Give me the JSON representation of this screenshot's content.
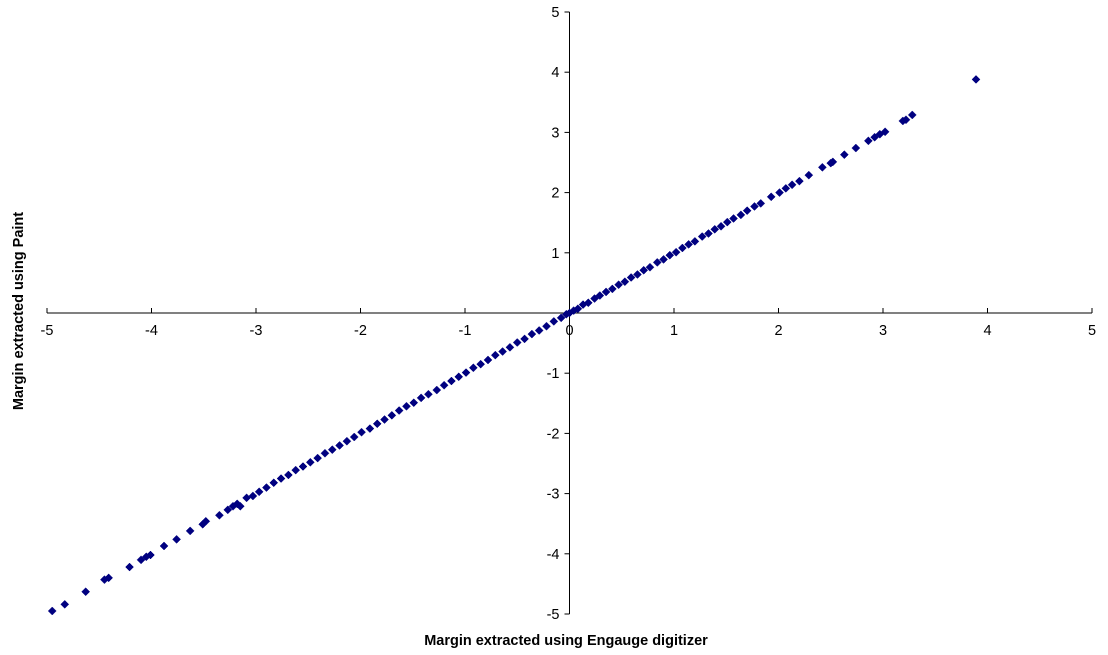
{
  "chart_data": {
    "type": "scatter",
    "title": "",
    "xlabel": "Margin extracted using Engauge digitizer",
    "ylabel": "Margin extracted using Paint",
    "xlim": [
      -5,
      5
    ],
    "ylim": [
      -5,
      5
    ],
    "x_ticks": [
      "-5",
      "-4",
      "-3",
      "-2",
      "-1",
      "0",
      "1",
      "2",
      "3",
      "4",
      "5"
    ],
    "y_ticks": [
      "-5",
      "-4",
      "-3",
      "-2",
      "-1",
      "1",
      "2",
      "3",
      "4",
      "5"
    ],
    "grid": false,
    "legend": "none",
    "marker": "diamond",
    "marker_color": "#000080",
    "points": [
      [
        -4.95,
        -4.95
      ],
      [
        -4.83,
        -4.84
      ],
      [
        -4.63,
        -4.63
      ],
      [
        -4.45,
        -4.43
      ],
      [
        -4.41,
        -4.4
      ],
      [
        -4.21,
        -4.22
      ],
      [
        -4.1,
        -4.1
      ],
      [
        -4.05,
        -4.05
      ],
      [
        -4.01,
        -4.02
      ],
      [
        -3.88,
        -3.87
      ],
      [
        -3.76,
        -3.76
      ],
      [
        -3.63,
        -3.62
      ],
      [
        -3.51,
        -3.51
      ],
      [
        -3.48,
        -3.46
      ],
      [
        -3.35,
        -3.36
      ],
      [
        -3.27,
        -3.27
      ],
      [
        -3.22,
        -3.21
      ],
      [
        -3.18,
        -3.17
      ],
      [
        -3.15,
        -3.21
      ],
      [
        -3.09,
        -3.07
      ],
      [
        -3.03,
        -3.04
      ],
      [
        -2.97,
        -2.97
      ],
      [
        -2.9,
        -2.9
      ],
      [
        -2.83,
        -2.82
      ],
      [
        -2.76,
        -2.75
      ],
      [
        -2.69,
        -2.69
      ],
      [
        -2.62,
        -2.61
      ],
      [
        -2.55,
        -2.55
      ],
      [
        -2.48,
        -2.48
      ],
      [
        -2.41,
        -2.41
      ],
      [
        -2.34,
        -2.33
      ],
      [
        -2.27,
        -2.27
      ],
      [
        -2.2,
        -2.2
      ],
      [
        -2.13,
        -2.13
      ],
      [
        -2.06,
        -2.06
      ],
      [
        -1.99,
        -1.98
      ],
      [
        -1.91,
        -1.92
      ],
      [
        -1.84,
        -1.84
      ],
      [
        -1.77,
        -1.77
      ],
      [
        -1.7,
        -1.7
      ],
      [
        -1.63,
        -1.62
      ],
      [
        -1.56,
        -1.55
      ],
      [
        -1.49,
        -1.49
      ],
      [
        -1.42,
        -1.41
      ],
      [
        -1.35,
        -1.35
      ],
      [
        -1.27,
        -1.28
      ],
      [
        -1.2,
        -1.2
      ],
      [
        -1.13,
        -1.13
      ],
      [
        -1.06,
        -1.06
      ],
      [
        -0.99,
        -0.99
      ],
      [
        -0.92,
        -0.91
      ],
      [
        -0.85,
        -0.85
      ],
      [
        -0.78,
        -0.78
      ],
      [
        -0.71,
        -0.7
      ],
      [
        -0.64,
        -0.64
      ],
      [
        -0.57,
        -0.57
      ],
      [
        -0.5,
        -0.49
      ],
      [
        -0.43,
        -0.43
      ],
      [
        -0.36,
        -0.35
      ],
      [
        -0.29,
        -0.29
      ],
      [
        -0.22,
        -0.22
      ],
      [
        -0.15,
        -0.14
      ],
      [
        -0.08,
        -0.08
      ],
      [
        -0.03,
        -0.02
      ],
      [
        0.0,
        0.0
      ],
      [
        0.04,
        0.04
      ],
      [
        0.08,
        0.07
      ],
      [
        0.13,
        0.14
      ],
      [
        0.18,
        0.17
      ],
      [
        0.24,
        0.24
      ],
      [
        0.29,
        0.29
      ],
      [
        0.35,
        0.35
      ],
      [
        0.41,
        0.4
      ],
      [
        0.47,
        0.47
      ],
      [
        0.53,
        0.52
      ],
      [
        0.59,
        0.59
      ],
      [
        0.65,
        0.64
      ],
      [
        0.71,
        0.71
      ],
      [
        0.77,
        0.76
      ],
      [
        0.84,
        0.84
      ],
      [
        0.9,
        0.89
      ],
      [
        0.96,
        0.96
      ],
      [
        1.02,
        1.01
      ],
      [
        1.08,
        1.08
      ],
      [
        1.14,
        1.14
      ],
      [
        1.2,
        1.19
      ],
      [
        1.27,
        1.27
      ],
      [
        1.33,
        1.32
      ],
      [
        1.39,
        1.39
      ],
      [
        1.45,
        1.44
      ],
      [
        1.51,
        1.51
      ],
      [
        1.57,
        1.57
      ],
      [
        1.64,
        1.63
      ],
      [
        1.7,
        1.7
      ],
      [
        1.77,
        1.77
      ],
      [
        1.83,
        1.82
      ],
      [
        1.93,
        1.93
      ],
      [
        2.01,
        2.0
      ],
      [
        2.07,
        2.07
      ],
      [
        2.13,
        2.13
      ],
      [
        2.2,
        2.19
      ],
      [
        2.29,
        2.29
      ],
      [
        2.42,
        2.42
      ],
      [
        2.5,
        2.49
      ],
      [
        2.52,
        2.51
      ],
      [
        2.63,
        2.63
      ],
      [
        2.74,
        2.74
      ],
      [
        2.86,
        2.86
      ],
      [
        2.92,
        2.92
      ],
      [
        2.97,
        2.97
      ],
      [
        3.02,
        3.01
      ],
      [
        3.19,
        3.19
      ],
      [
        3.22,
        3.21
      ],
      [
        3.28,
        3.29
      ],
      [
        3.89,
        3.88
      ]
    ]
  }
}
